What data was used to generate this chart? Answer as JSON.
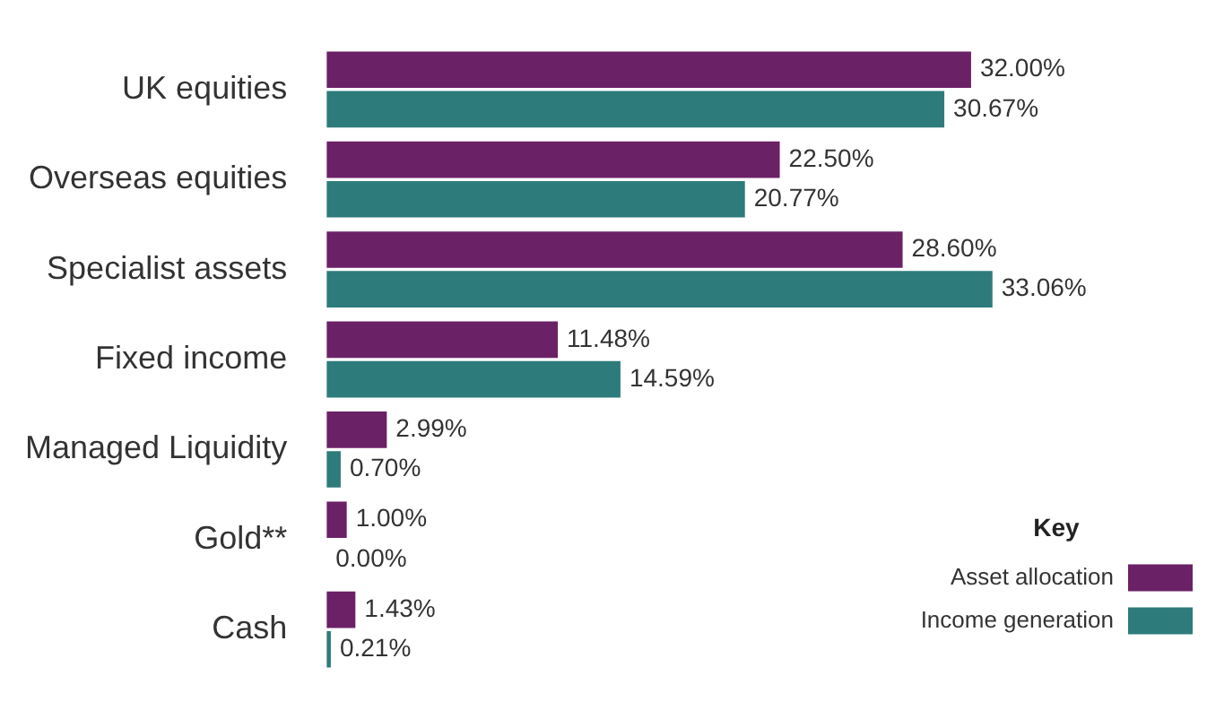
{
  "chart_data": {
    "type": "bar",
    "orientation": "horizontal",
    "categories": [
      "UK equities",
      "Overseas equities",
      "Specialist assets",
      "Fixed income",
      "Managed Liquidity",
      "Gold**",
      "Cash"
    ],
    "legend": "bottom right",
    "legend_title": "Key",
    "series": [
      {
        "name": "Asset allocation",
        "color": "#6b2166",
        "values": [
          32.0,
          22.5,
          28.6,
          11.48,
          2.99,
          1.0,
          1.43
        ],
        "value_labels": [
          "32.00%",
          "22.50%",
          "28.60%",
          "11.48%",
          "2.99%",
          "1.00%",
          "1.43%"
        ]
      },
      {
        "name": "Income generation",
        "color": "#2e7b7b",
        "values": [
          30.67,
          20.77,
          33.06,
          14.59,
          0.7,
          0.0,
          0.21
        ],
        "value_labels": [
          "30.67%",
          "20.77%",
          "33.06%",
          "14.59%",
          "0.70%",
          "0.00%",
          "0.21%"
        ]
      }
    ]
  }
}
